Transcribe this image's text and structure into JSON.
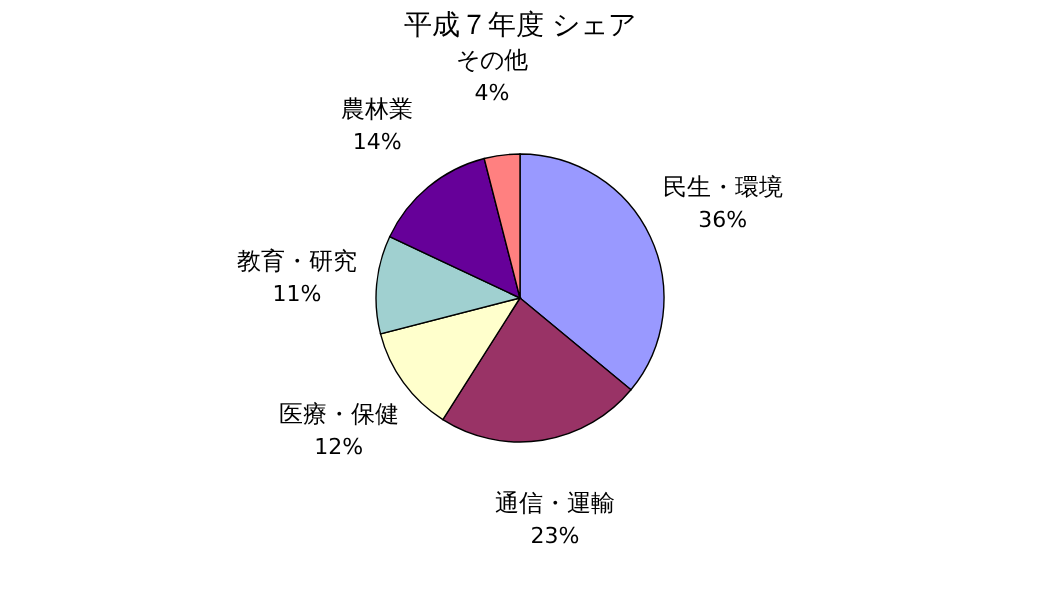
{
  "chart_data": {
    "type": "pie",
    "title": "平成７年度 シェア",
    "categories": [
      "民生・環境",
      "通信・運輸",
      "医療・保健",
      "教育・研究",
      "農林業",
      "その他"
    ],
    "values": [
      36,
      23,
      12,
      11,
      14,
      4
    ],
    "value_labels": [
      "36%",
      "23%",
      "12%",
      "11%",
      "14%",
      "4%"
    ],
    "colors": [
      "#9999ff",
      "#993366",
      "#ffffcc",
      "#a0d0d0",
      "#660099",
      "#ff8080"
    ],
    "legend": false
  }
}
